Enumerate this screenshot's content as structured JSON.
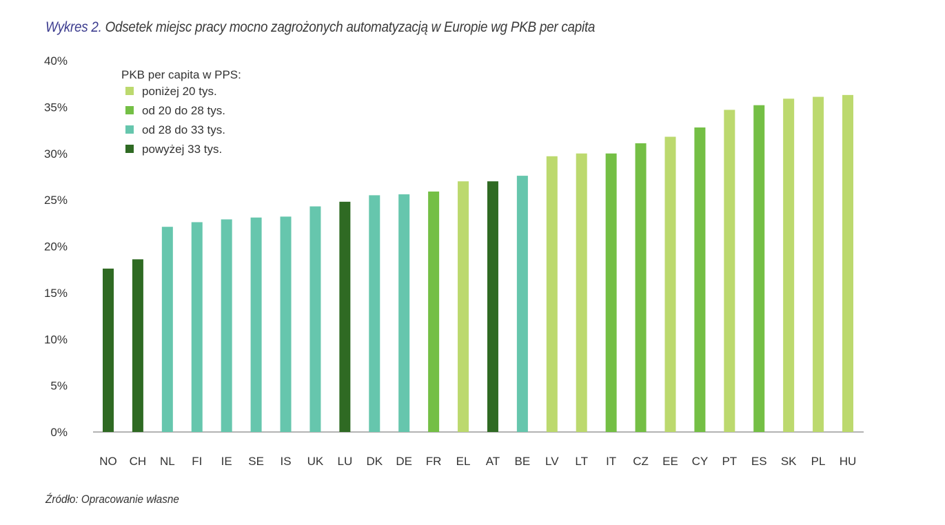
{
  "chart_data": {
    "type": "bar",
    "title_lead": "Wykres 2.",
    "title": "Odsetek miejsc pracy mocno zagrożonych automatyzacją w Europie wg PKB per capita",
    "source": "Źródło: Opracowanie własne",
    "xlabel": "",
    "ylabel": "",
    "ylim": [
      0,
      40
    ],
    "yticks": [
      "0%",
      "5%",
      "10%",
      "15%",
      "20%",
      "25%",
      "30%",
      "35%",
      "40%"
    ],
    "grid": false,
    "legend": {
      "placement": "top-left",
      "title": "PKB per capita w PPS:",
      "entries": [
        {
          "key": "low",
          "label": "poniżej 20 tys.",
          "color": "#bcd96e"
        },
        {
          "key": "mid",
          "label": "od 20 do 28 tys.",
          "color": "#74bf45"
        },
        {
          "key": "upper",
          "label": "od 28 do 33 tys.",
          "color": "#66c6ad"
        },
        {
          "key": "high",
          "label": "powyżej 33 tys.",
          "color": "#2f6a23"
        }
      ]
    },
    "categories": [
      "NO",
      "CH",
      "NL",
      "FI",
      "IE",
      "SE",
      "IS",
      "UK",
      "LU",
      "DK",
      "DE",
      "FR",
      "EL",
      "AT",
      "BE",
      "LV",
      "LT",
      "IT",
      "CZ",
      "EE",
      "CY",
      "PT",
      "ES",
      "SK",
      "PL",
      "HU"
    ],
    "values": [
      17.6,
      18.6,
      22.1,
      22.6,
      22.9,
      23.1,
      23.2,
      24.3,
      24.8,
      25.5,
      25.6,
      25.9,
      27.0,
      27.0,
      27.6,
      29.7,
      30.0,
      30.0,
      31.1,
      31.8,
      32.8,
      34.7,
      35.2,
      35.9,
      36.1,
      36.3
    ],
    "groups": [
      "high",
      "high",
      "upper",
      "upper",
      "upper",
      "upper",
      "upper",
      "upper",
      "high",
      "upper",
      "upper",
      "mid",
      "low",
      "high",
      "upper",
      "low",
      "low",
      "mid",
      "mid",
      "low",
      "mid",
      "low",
      "mid",
      "low",
      "low",
      "low"
    ]
  }
}
